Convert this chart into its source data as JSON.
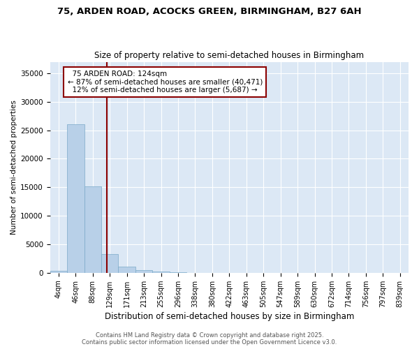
{
  "title_line1": "75, ARDEN ROAD, ACOCKS GREEN, BIRMINGHAM, B27 6AH",
  "title_line2": "Size of property relative to semi-detached houses in Birmingham",
  "xlabel": "Distribution of semi-detached houses by size in Birmingham",
  "ylabel": "Number of semi-detached properties",
  "background_color": "#dce8f5",
  "bar_color": "#b8d0e8",
  "bar_edge_color": "#7aaac8",
  "grid_color": "#ffffff",
  "categories": [
    "4sqm",
    "46sqm",
    "88sqm",
    "129sqm",
    "171sqm",
    "213sqm",
    "255sqm",
    "296sqm",
    "338sqm",
    "380sqm",
    "422sqm",
    "463sqm",
    "505sqm",
    "547sqm",
    "589sqm",
    "630sqm",
    "672sqm",
    "714sqm",
    "756sqm",
    "797sqm",
    "839sqm"
  ],
  "values": [
    400,
    26100,
    15200,
    3300,
    1050,
    480,
    200,
    50,
    0,
    0,
    0,
    0,
    0,
    0,
    0,
    0,
    0,
    0,
    0,
    0,
    0
  ],
  "property_label": "75 ARDEN ROAD: 124sqm",
  "pct_smaller": 87,
  "count_smaller": 40471,
  "pct_larger": 12,
  "count_larger": 5687,
  "vline_x": 2.82,
  "ylim": [
    0,
    37000
  ],
  "yticks": [
    0,
    5000,
    10000,
    15000,
    20000,
    25000,
    30000,
    35000
  ],
  "footer_line1": "Contains HM Land Registry data © Crown copyright and database right 2025.",
  "footer_line2": "Contains public sector information licensed under the Open Government Licence v3.0."
}
